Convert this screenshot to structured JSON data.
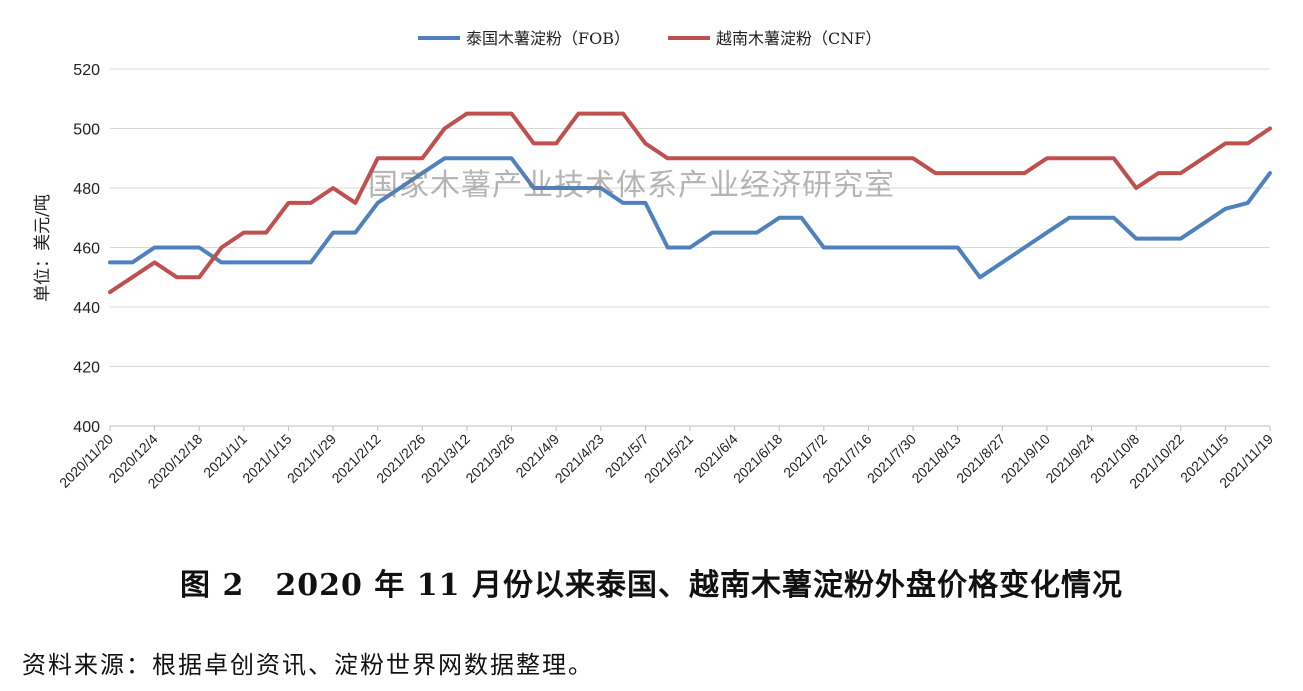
{
  "chart_data": {
    "type": "line",
    "title": "",
    "xlabel": "",
    "ylabel": "单位：美元/吨",
    "ylim": [
      400,
      520
    ],
    "yticks": [
      400,
      420,
      440,
      460,
      480,
      500,
      520
    ],
    "grid": true,
    "legend_position": "top-center",
    "x": [
      "2020/11/20",
      "2020/11/27",
      "2020/12/4",
      "2020/12/11",
      "2020/12/18",
      "2020/12/25",
      "2021/1/1",
      "2021/1/8",
      "2021/1/15",
      "2021/1/22",
      "2021/1/29",
      "2021/2/5",
      "2021/2/12",
      "2021/2/19",
      "2021/2/26",
      "2021/3/5",
      "2021/3/12",
      "2021/3/19",
      "2021/3/26",
      "2021/4/2",
      "2021/4/9",
      "2021/4/16",
      "2021/4/23",
      "2021/4/30",
      "2021/5/7",
      "2021/5/14",
      "2021/5/21",
      "2021/5/28",
      "2021/6/4",
      "2021/6/11",
      "2021/6/18",
      "2021/6/25",
      "2021/7/2",
      "2021/7/9",
      "2021/7/16",
      "2021/7/23",
      "2021/7/30",
      "2021/8/6",
      "2021/8/13",
      "2021/8/20",
      "2021/8/27",
      "2021/9/3",
      "2021/9/10",
      "2021/9/17",
      "2021/9/24",
      "2021/10/1",
      "2021/10/8",
      "2021/10/15",
      "2021/10/22",
      "2021/10/29",
      "2021/11/5",
      "2021/11/12",
      "2021/11/19"
    ],
    "tick_labels": [
      "2020/11/20",
      "2020/12/4",
      "2020/12/18",
      "2021/1/1",
      "2021/1/15",
      "2021/1/29",
      "2021/2/12",
      "2021/2/26",
      "2021/3/12",
      "2021/3/26",
      "2021/4/9",
      "2021/4/23",
      "2021/5/7",
      "2021/5/21",
      "2021/6/4",
      "2021/6/18",
      "2021/7/2",
      "2021/7/16",
      "2021/7/30",
      "2021/8/13",
      "2021/8/27",
      "2021/9/10",
      "2021/9/24",
      "2021/10/8",
      "2021/10/22",
      "2021/11/5",
      "2021/11/19"
    ],
    "series": [
      {
        "name": "泰国木薯淀粉（FOB）",
        "color": "#4f81bd",
        "values": [
          455,
          455,
          460,
          460,
          460,
          455,
          455,
          455,
          455,
          455,
          465,
          465,
          475,
          480,
          485,
          490,
          490,
          490,
          490,
          480,
          480,
          480,
          480,
          475,
          475,
          460,
          460,
          465,
          465,
          465,
          470,
          470,
          460,
          460,
          460,
          460,
          460,
          460,
          460,
          450,
          455,
          460,
          465,
          470,
          470,
          470,
          463,
          463,
          463,
          468,
          473,
          475,
          485
        ]
      },
      {
        "name": "越南木薯淀粉（CNF）",
        "color": "#c0504d",
        "values": [
          445,
          450,
          455,
          450,
          450,
          460,
          465,
          465,
          475,
          475,
          480,
          475,
          490,
          490,
          490,
          500,
          505,
          505,
          505,
          495,
          495,
          505,
          505,
          505,
          495,
          490,
          490,
          490,
          490,
          490,
          490,
          490,
          490,
          490,
          490,
          490,
          490,
          485,
          485,
          485,
          485,
          485,
          490,
          490,
          490,
          490,
          480,
          485,
          485,
          490,
          495,
          495,
          500
        ]
      }
    ]
  },
  "watermark": "国家木薯产业技术体系产业经济研究室",
  "caption": "图 2　2020 年 11 月份以来泰国、越南木薯淀粉外盘价格变化情况",
  "source": "资料来源：根据卓创资讯、淀粉世界网数据整理。"
}
